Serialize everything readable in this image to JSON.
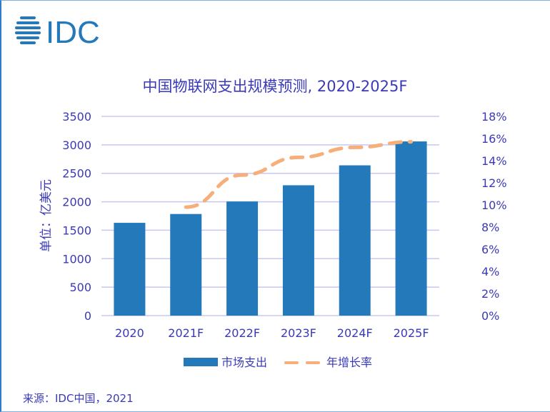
{
  "logo_text": "IDC",
  "chart_data": {
    "type": "bar",
    "title": "中国物联网支出规模预测, 2020-2025F",
    "categories": [
      "2020",
      "2021F",
      "2022F",
      "2023F",
      "2024F",
      "2025F"
    ],
    "series": [
      {
        "name": "市场支出",
        "type": "bar",
        "axis": "left",
        "color": "#2479bb",
        "values": [
          1630,
          1785,
          2005,
          2290,
          2640,
          3060
        ]
      },
      {
        "name": "年增长率",
        "type": "line",
        "style": "dashed",
        "axis": "right",
        "color": "#f6ae7a",
        "values": [
          null,
          9.8,
          12.7,
          14.3,
          15.2,
          15.7
        ]
      }
    ],
    "ylabel": "单位：亿美元",
    "ylim": [
      0,
      3500
    ],
    "yticks": [
      "0",
      "500",
      "1000",
      "1500",
      "2000",
      "2500",
      "3000",
      "3500"
    ],
    "y2lim": [
      0,
      18
    ],
    "y2ticks": [
      "0%",
      "2%",
      "4%",
      "6%",
      "8%",
      "10%",
      "12%",
      "14%",
      "16%",
      "18%"
    ],
    "grid": true,
    "legend": "bottom"
  },
  "source": "来源：IDC中国，2021"
}
